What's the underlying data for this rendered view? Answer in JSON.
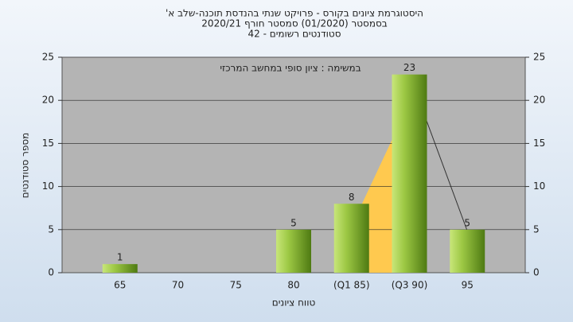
{
  "chart_data": {
    "type": "bar",
    "title": "היסטוגרמת ציונים בקורס - פרויקט שנתי בהנדסת תוכנה-שלב א'",
    "subtitle": "בסמסטר (01/2020) סמסטר חורף 2020/21",
    "subtitle2": "סטודנטים רשומים - 42",
    "annotation": "במשימה : ציון סופי במחשב המרכזי",
    "x_label": "טווח ציונים",
    "y_label": "מספר סטודנטים",
    "categories": [
      "65",
      "70",
      "75",
      "80",
      "(Q1 85)",
      "(Q3 90)",
      "95"
    ],
    "values": [
      1,
      0,
      0,
      5,
      8,
      23,
      5
    ],
    "color": "#9dc844",
    "ylim": [
      0,
      25
    ],
    "yticks": [
      0,
      5,
      10,
      15,
      20,
      25
    ],
    "y2lim": [
      0,
      25
    ],
    "y2ticks": [
      0,
      5,
      10,
      15,
      20,
      25
    ],
    "grid": true
  }
}
